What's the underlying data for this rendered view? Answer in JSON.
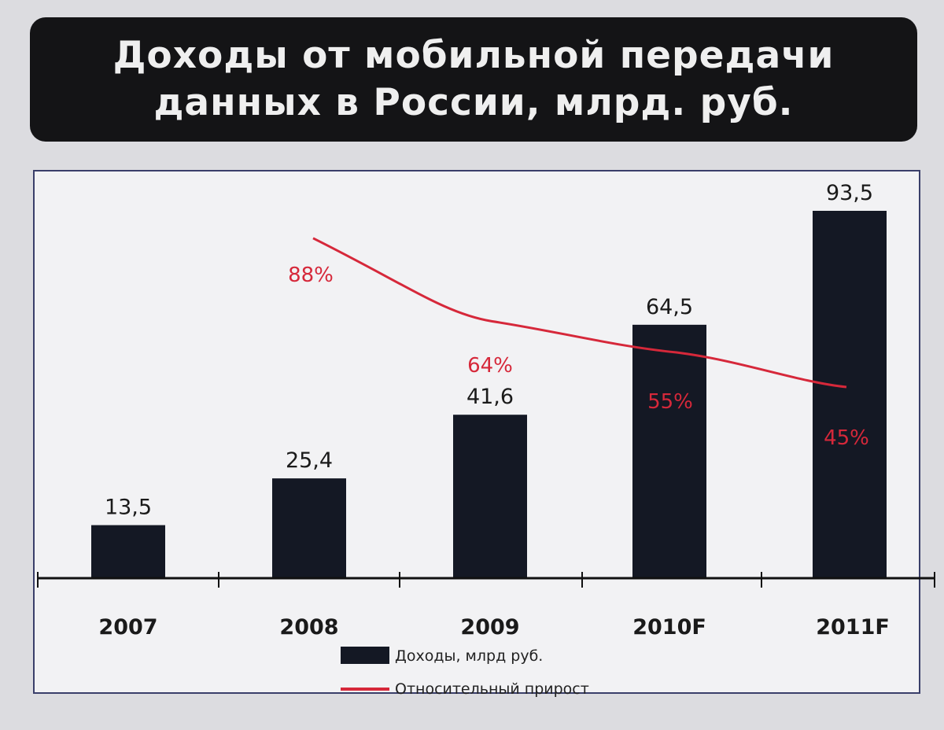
{
  "chart_data": {
    "type": "bar",
    "title_lines": [
      "Доходы от мобильной передачи",
      "данных в России, млрд. руб."
    ],
    "categories": [
      "2007",
      "2008",
      "2009",
      "2010F",
      "2011F"
    ],
    "value_labels": [
      "13,5",
      "25,4",
      "41,6",
      "64,5",
      "93,5"
    ],
    "series": [
      {
        "name": "Доходы, млрд руб.",
        "values": [
          13.5,
          25.4,
          41.6,
          64.5,
          93.5
        ],
        "color": "#141824"
      },
      {
        "name": "Относительный прирост",
        "type": "line",
        "values": [
          null,
          88,
          64,
          55,
          45
        ],
        "labels": [
          "",
          "88%",
          "64%",
          "55%",
          "45%"
        ],
        "color": "#d6283a"
      }
    ],
    "ylim": [
      0,
      100
    ],
    "grid": false,
    "legend": "bottom-center"
  }
}
